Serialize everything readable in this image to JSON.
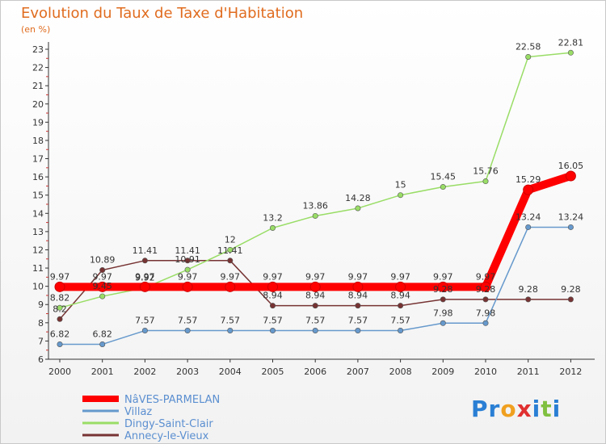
{
  "title": "Evolution du Taux de Taxe d'Habitation",
  "subtitle": "(en %)",
  "logo": "Proxiti",
  "chart_data": {
    "type": "line",
    "x": [
      "2000",
      "2001",
      "2002",
      "2003",
      "2004",
      "2005",
      "2006",
      "2007",
      "2008",
      "2009",
      "2010",
      "2011",
      "2012"
    ],
    "ylim": [
      6,
      23
    ],
    "yticks": [
      6,
      7,
      8,
      9,
      10,
      11,
      12,
      13,
      14,
      15,
      16,
      17,
      18,
      19,
      20,
      21,
      22,
      23
    ],
    "grid": false,
    "legend_position": "bottom-left",
    "series": [
      {
        "name": "NâVES-PARMELAN",
        "color": "#ff0000",
        "values": [
          9.97,
          9.97,
          9.97,
          9.97,
          9.97,
          9.97,
          9.97,
          9.97,
          9.97,
          9.97,
          9.97,
          15.29,
          16.05
        ],
        "labels": [
          "9.97",
          "9.97",
          "9.97",
          "9.97",
          "9.97",
          "9.97",
          "9.97",
          "9.97",
          "9.97",
          "9.97",
          "9.97",
          "15.29",
          "16.05"
        ]
      },
      {
        "name": "Villaz",
        "color": "#6699cc",
        "values": [
          6.82,
          6.82,
          7.57,
          7.57,
          7.57,
          7.57,
          7.57,
          7.57,
          7.57,
          7.98,
          7.98,
          13.24,
          13.24
        ],
        "labels": [
          "6.82",
          "6.82",
          "7.57",
          "7.57",
          "7.57",
          "7.57",
          "7.57",
          "7.57",
          "7.57",
          "7.98",
          "7.98",
          "13.24",
          "13.24"
        ]
      },
      {
        "name": "Dingy-Saint-Clair",
        "color": "#99dd66",
        "values": [
          8.82,
          9.45,
          9.92,
          10.91,
          12,
          13.2,
          13.86,
          14.28,
          15,
          15.45,
          15.76,
          22.58,
          22.81
        ],
        "labels": [
          "8.82",
          "9.45",
          "9.92",
          "10.91",
          "12",
          "13.2",
          "13.86",
          "14.28",
          "15",
          "15.45",
          "15.76",
          "22.58",
          "22.81"
        ]
      },
      {
        "name": "Annecy-le-Vieux",
        "color": "#773333",
        "values": [
          8.2,
          10.89,
          11.41,
          11.41,
          11.41,
          8.94,
          8.94,
          8.94,
          8.94,
          9.28,
          9.28,
          9.28,
          9.28
        ],
        "labels": [
          "8.2",
          "10.89",
          "11.41",
          "11.41",
          "11.41",
          "8.94",
          "8.94",
          "8.94",
          "8.94",
          "9.28",
          "9.28",
          "9.28",
          "9.28"
        ]
      }
    ]
  }
}
